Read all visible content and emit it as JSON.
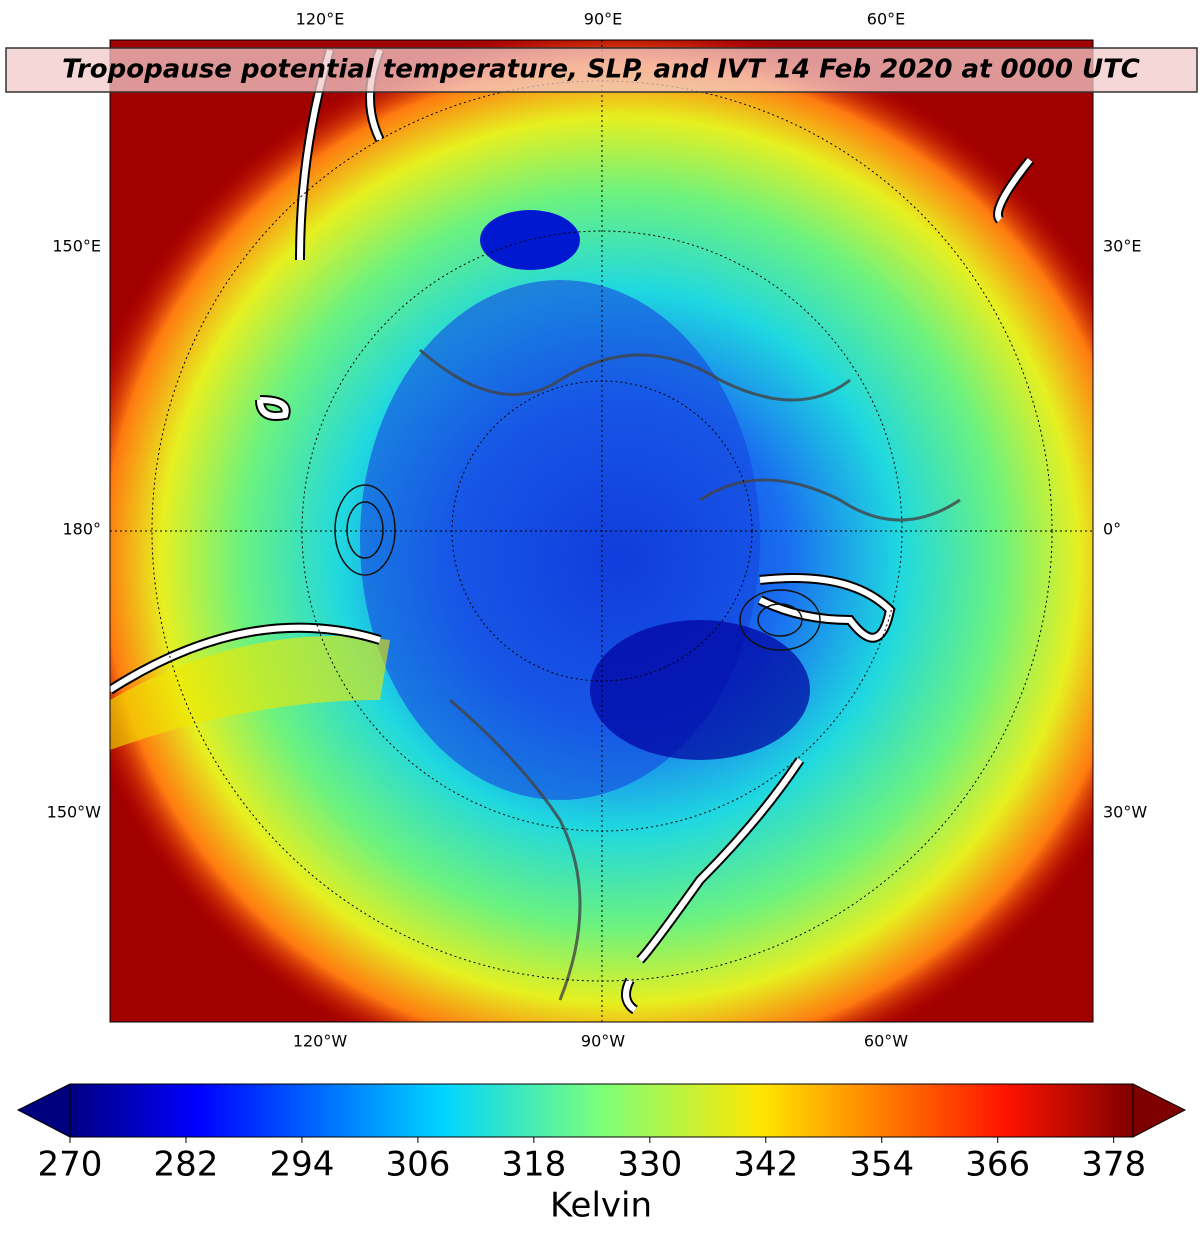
{
  "map": {
    "title": "Tropopause potential temperature, SLP, and IVT 14 Feb 2020 at 0000 UTC",
    "top_labels": [
      "120°E",
      "90°E",
      "60°E"
    ],
    "bottom_labels": [
      "120°W",
      "90°W",
      "60°W"
    ],
    "left_labels": [
      "150°E",
      "180°",
      "150°W"
    ],
    "right_labels": [
      "30°E",
      "0°",
      "30°W"
    ]
  },
  "colorbar": {
    "lim": [
      270,
      380
    ],
    "ticks": [
      270,
      282,
      294,
      306,
      318,
      330,
      342,
      354,
      366,
      378
    ],
    "label": "Kelvin"
  }
}
